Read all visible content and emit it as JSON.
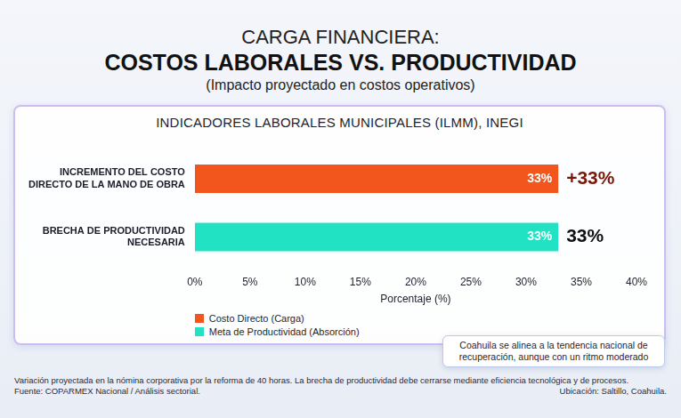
{
  "chart_data": {
    "type": "bar",
    "orientation": "horizontal",
    "title": [
      "CARGA FINANCIERA:",
      "COSTOS LABORALES VS. PRODUCTIVIDAD"
    ],
    "subtitle": "(Impacto proyectado en costos operativos)",
    "panel_title": "INDICADORES LABORALES MUNICIPALES (ILMM), INEGI",
    "categories": [
      "INCREMENTO DEL COSTO DIRECTO DE LA MANO DE OBRA",
      "BRECHA DE PRODUCTIVIDAD NECESARIA"
    ],
    "series": [
      {
        "name": "Costo Directo (Carga)",
        "color": "#f2561d",
        "values": [
          33,
          null
        ],
        "value_labels": [
          "33%",
          null
        ],
        "end_labels": [
          "+33%",
          null
        ]
      },
      {
        "name": "Meta de Productividad (Absorción)",
        "color": "#22e2c4",
        "values": [
          null,
          33
        ],
        "value_labels": [
          null,
          "33%"
        ],
        "end_labels": [
          null,
          "33%"
        ]
      }
    ],
    "data_labels": true,
    "x_label": "Porcentaje (%)",
    "xlim": [
      0,
      40
    ],
    "xticks": [
      {
        "value": 0,
        "label": "0%"
      },
      {
        "value": 5,
        "label": "5%"
      },
      {
        "value": 10,
        "label": "10%"
      },
      {
        "value": 15,
        "label": "15%"
      },
      {
        "value": 20,
        "label": "20%"
      },
      {
        "value": 25,
        "label": "25%"
      },
      {
        "value": 30,
        "label": "30%"
      },
      {
        "value": 35,
        "label": "35%"
      },
      {
        "value": 40,
        "label": "40%"
      }
    ],
    "grid": false,
    "legend": "bottom-left",
    "annotation": "Coahuila se alinea a la tendencia nacional de recuperación, aunque con un ritmo moderado",
    "footnote": "Variación proyectada en la nómina corporativa por la reforma de 40 horas. La brecha de productividad debe cerrarse mediante eficiencia tecnológica y de procesos.",
    "source": "Fuente: COPARMEX Nacional / Análisis sectorial.",
    "location": "Ubicación: Saltillo, Coahuila."
  }
}
